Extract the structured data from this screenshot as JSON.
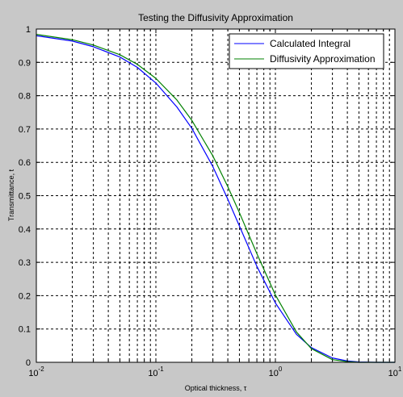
{
  "chart_data": {
    "type": "line",
    "title": "Testing the Diffusivity Approximation",
    "xlabel": "Optical thickness, τ",
    "ylabel": "Transmittance, t",
    "xscale": "log",
    "xlim": [
      0.01,
      10
    ],
    "ylim": [
      0,
      1
    ],
    "grid": true,
    "grid_style": "dashed",
    "legend_position": "top-right",
    "x_ticks": [
      {
        "base": "10",
        "exp": "-2"
      },
      {
        "base": "10",
        "exp": "-1"
      },
      {
        "base": "10",
        "exp": "0"
      },
      {
        "base": "10",
        "exp": "1"
      }
    ],
    "y_ticks": [
      "0",
      "0.1",
      "0.2",
      "0.3",
      "0.4",
      "0.5",
      "0.6",
      "0.7",
      "0.8",
      "0.9",
      "1"
    ],
    "series": [
      {
        "name": "Calculated Integral",
        "color": "#0000ff",
        "x": [
          0.01,
          0.02,
          0.03,
          0.05,
          0.07,
          0.1,
          0.15,
          0.2,
          0.3,
          0.4,
          0.5,
          0.7,
          1.0,
          1.5,
          2.0,
          3.0,
          4.0,
          5.0,
          7.0,
          10.0
        ],
        "y": [
          0.98,
          0.964,
          0.947,
          0.916,
          0.885,
          0.838,
          0.766,
          0.702,
          0.587,
          0.489,
          0.409,
          0.288,
          0.178,
          0.084,
          0.044,
          0.013,
          0.004,
          0.001,
          0.0,
          0.0
        ]
      },
      {
        "name": "Diffusivity Approximation",
        "color": "#008000",
        "x": [
          0.01,
          0.02,
          0.03,
          0.05,
          0.07,
          0.1,
          0.15,
          0.2,
          0.3,
          0.4,
          0.5,
          0.7,
          1.0,
          1.5,
          2.0,
          3.0,
          4.0,
          5.0,
          7.0,
          10.0
        ],
        "y": [
          0.984,
          0.968,
          0.952,
          0.923,
          0.894,
          0.852,
          0.787,
          0.726,
          0.619,
          0.527,
          0.449,
          0.326,
          0.202,
          0.091,
          0.041,
          0.008,
          0.002,
          0.0,
          0.0,
          0.0
        ]
      }
    ]
  },
  "colors": {
    "figure_background": "#c8c8c8",
    "axes_background": "#ffffff"
  }
}
